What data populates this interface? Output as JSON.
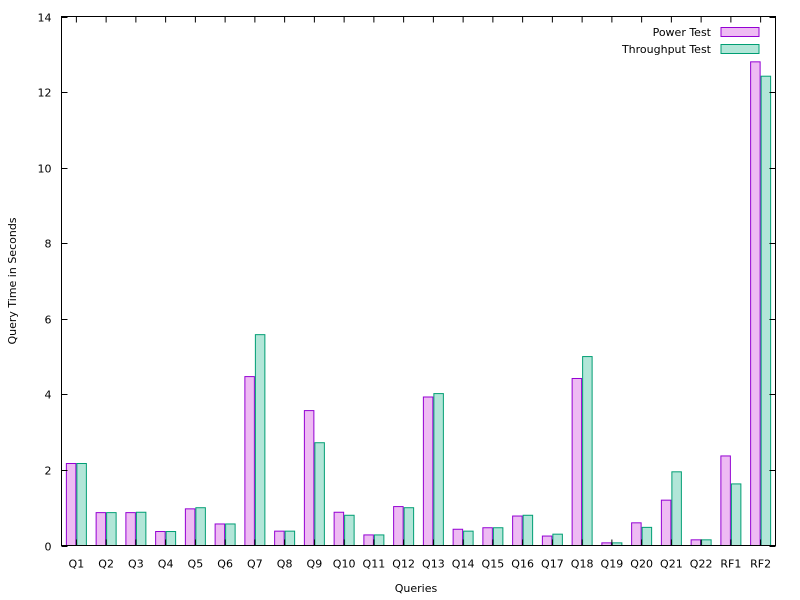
{
  "chart_data": {
    "type": "bar",
    "title": "",
    "xlabel": "Queries",
    "ylabel": "Query Time in Seconds",
    "ylim": [
      0,
      14
    ],
    "yticks": [
      "0",
      "2",
      "4",
      "6",
      "8",
      "10",
      "12",
      "14"
    ],
    "grid": false,
    "legend_position": "top-right",
    "categories": [
      "Q1",
      "Q2",
      "Q3",
      "Q4",
      "Q5",
      "Q6",
      "Q7",
      "Q8",
      "Q9",
      "Q10",
      "Q11",
      "Q12",
      "Q13",
      "Q14",
      "Q15",
      "Q16",
      "Q17",
      "Q18",
      "Q19",
      "Q20",
      "Q21",
      "Q22",
      "RF1",
      "RF2"
    ],
    "series": [
      {
        "name": "Power Test",
        "fill": "#eebbf3",
        "stroke": "#9400d3",
        "values": [
          2.17,
          0.87,
          0.87,
          0.37,
          0.97,
          0.57,
          4.47,
          0.38,
          3.57,
          0.88,
          0.28,
          1.03,
          3.93,
          0.43,
          0.47,
          0.78,
          0.25,
          4.42,
          0.07,
          0.6,
          1.2,
          0.15,
          2.37,
          12.8
        ]
      },
      {
        "name": "Throughput Test",
        "fill": "#b2e6d8",
        "stroke": "#009e73",
        "values": [
          2.17,
          0.87,
          0.88,
          0.37,
          1.0,
          0.57,
          5.58,
          0.38,
          2.72,
          0.8,
          0.28,
          1.0,
          4.02,
          0.38,
          0.47,
          0.8,
          0.3,
          5.0,
          0.07,
          0.48,
          1.95,
          0.15,
          1.63,
          12.42
        ]
      }
    ]
  }
}
